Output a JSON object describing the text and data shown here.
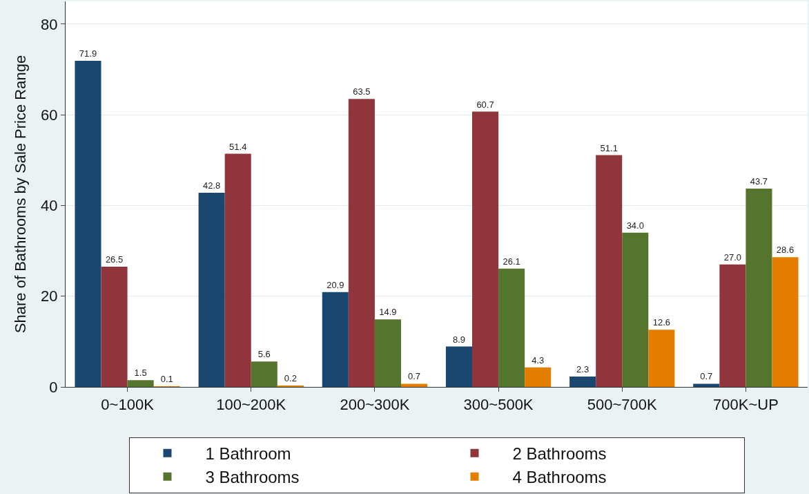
{
  "chart_data": {
    "type": "bar",
    "ylabel": "Share of Bathrooms by Sale Price Range",
    "categories": [
      "0~100K",
      "100~200K",
      "200~300K",
      "300~500K",
      "500~700K",
      "700K~UP"
    ],
    "series": [
      {
        "name": "1 Bathroom",
        "color": "#1a476f",
        "values": [
          71.9,
          42.8,
          20.9,
          8.9,
          2.3,
          0.7
        ],
        "value_labels": [
          "71.9",
          "42.8",
          "20.9",
          "8.9",
          "2.3",
          "0.7"
        ]
      },
      {
        "name": "2 Bathrooms",
        "color": "#90353b",
        "values": [
          26.5,
          51.4,
          63.5,
          60.7,
          51.1,
          27.0
        ],
        "value_labels": [
          "26.5",
          "51.4",
          "63.5",
          "60.7",
          "51.1",
          "27.0"
        ]
      },
      {
        "name": "3 Bathrooms",
        "color": "#55752f",
        "values": [
          1.5,
          5.6,
          14.9,
          26.1,
          34.0,
          43.7
        ],
        "value_labels": [
          "1.5",
          "5.6",
          "14.9",
          "26.1",
          "34.0",
          "43.7"
        ]
      },
      {
        "name": "4 Bathrooms",
        "color": "#e37e00",
        "values": [
          0.1,
          0.2,
          0.7,
          4.3,
          12.6,
          28.6
        ],
        "value_labels": [
          "0.1",
          "0.2",
          "0.7",
          "4.3",
          "12.6",
          "28.6"
        ]
      }
    ],
    "ylim": [
      0,
      85
    ],
    "yticks": [
      0,
      20,
      40,
      60,
      80
    ],
    "grid": "y",
    "legend": "bottom"
  }
}
